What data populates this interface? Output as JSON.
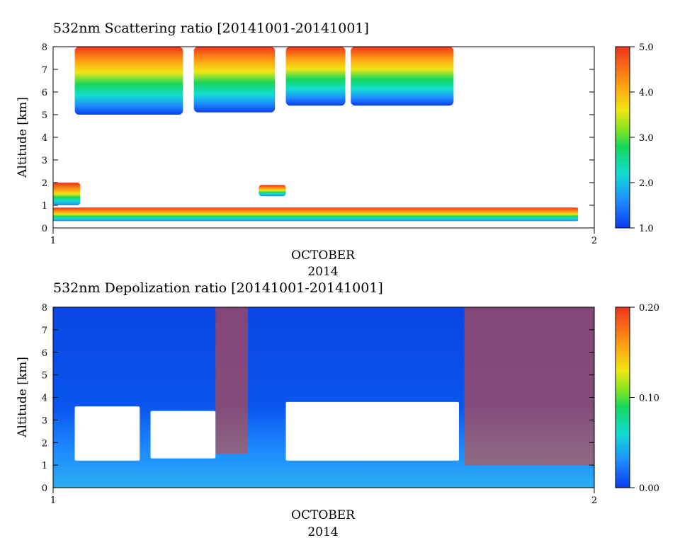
{
  "chart_data": [
    {
      "type": "heatmap",
      "title": "532nm Scattering ratio [20141001-20141001]",
      "ylabel": "Altitude [km]",
      "xlabel_line1": "OCTOBER",
      "xlabel_line2": "2014",
      "x_ticks": [
        "1",
        "2"
      ],
      "y_ticks": [
        "0",
        "1",
        "2",
        "3",
        "4",
        "5",
        "6",
        "7",
        "8"
      ],
      "ylim": [
        0,
        8
      ],
      "colorbar": {
        "min": 1.0,
        "max": 5.0,
        "ticks": [
          "1.0",
          "2.0",
          "3.0",
          "4.0",
          "5.0"
        ]
      },
      "features": [
        {
          "kind": "cloud",
          "t0": 0.04,
          "t1": 0.24,
          "base": 5.0,
          "top": 8.0
        },
        {
          "kind": "cloud",
          "t0": 0.26,
          "t1": 0.41,
          "base": 5.1,
          "top": 8.0
        },
        {
          "kind": "cloud",
          "t0": 0.43,
          "t1": 0.54,
          "base": 5.4,
          "top": 8.0
        },
        {
          "kind": "cloud",
          "t0": 0.55,
          "t1": 0.74,
          "base": 5.4,
          "top": 8.0
        },
        {
          "kind": "boundary_layer",
          "t0": 0.0,
          "t1": 0.97,
          "base": 0.3,
          "top": 0.9
        },
        {
          "kind": "low_cloud",
          "t0": 0.0,
          "t1": 0.05,
          "base": 1.0,
          "top": 2.0
        },
        {
          "kind": "low_cloud",
          "t0": 0.38,
          "t1": 0.43,
          "base": 1.4,
          "top": 1.9
        }
      ]
    },
    {
      "type": "heatmap",
      "title": "532nm Depolization ratio [20141001-20141001]",
      "ylabel": "Altitude [km]",
      "xlabel_line1": "OCTOBER",
      "xlabel_line2": "2014",
      "x_ticks": [
        "1",
        "2"
      ],
      "y_ticks": [
        "0",
        "1",
        "2",
        "3",
        "4",
        "5",
        "6",
        "7",
        "8"
      ],
      "ylim": [
        0,
        8
      ],
      "colorbar": {
        "min": 0.0,
        "max": 0.2,
        "ticks": [
          "0.00",
          "0.10",
          "0.20"
        ]
      },
      "features": [
        {
          "kind": "background_low",
          "value": 0.02
        },
        {
          "kind": "high_depol_band",
          "t0": 0.3,
          "t1": 0.36,
          "base": 1.5,
          "top": 8.0
        },
        {
          "kind": "high_depol_band",
          "t0": 0.76,
          "t1": 1.0,
          "base": 1.0,
          "top": 8.0
        },
        {
          "kind": "no_data_gap",
          "t0": 0.04,
          "t1": 0.16,
          "base": 1.2,
          "top": 3.6
        },
        {
          "kind": "no_data_gap",
          "t0": 0.18,
          "t1": 0.3,
          "base": 1.3,
          "top": 3.4
        },
        {
          "kind": "no_data_gap",
          "t0": 0.43,
          "t1": 0.75,
          "base": 1.2,
          "top": 3.8
        }
      ]
    }
  ]
}
